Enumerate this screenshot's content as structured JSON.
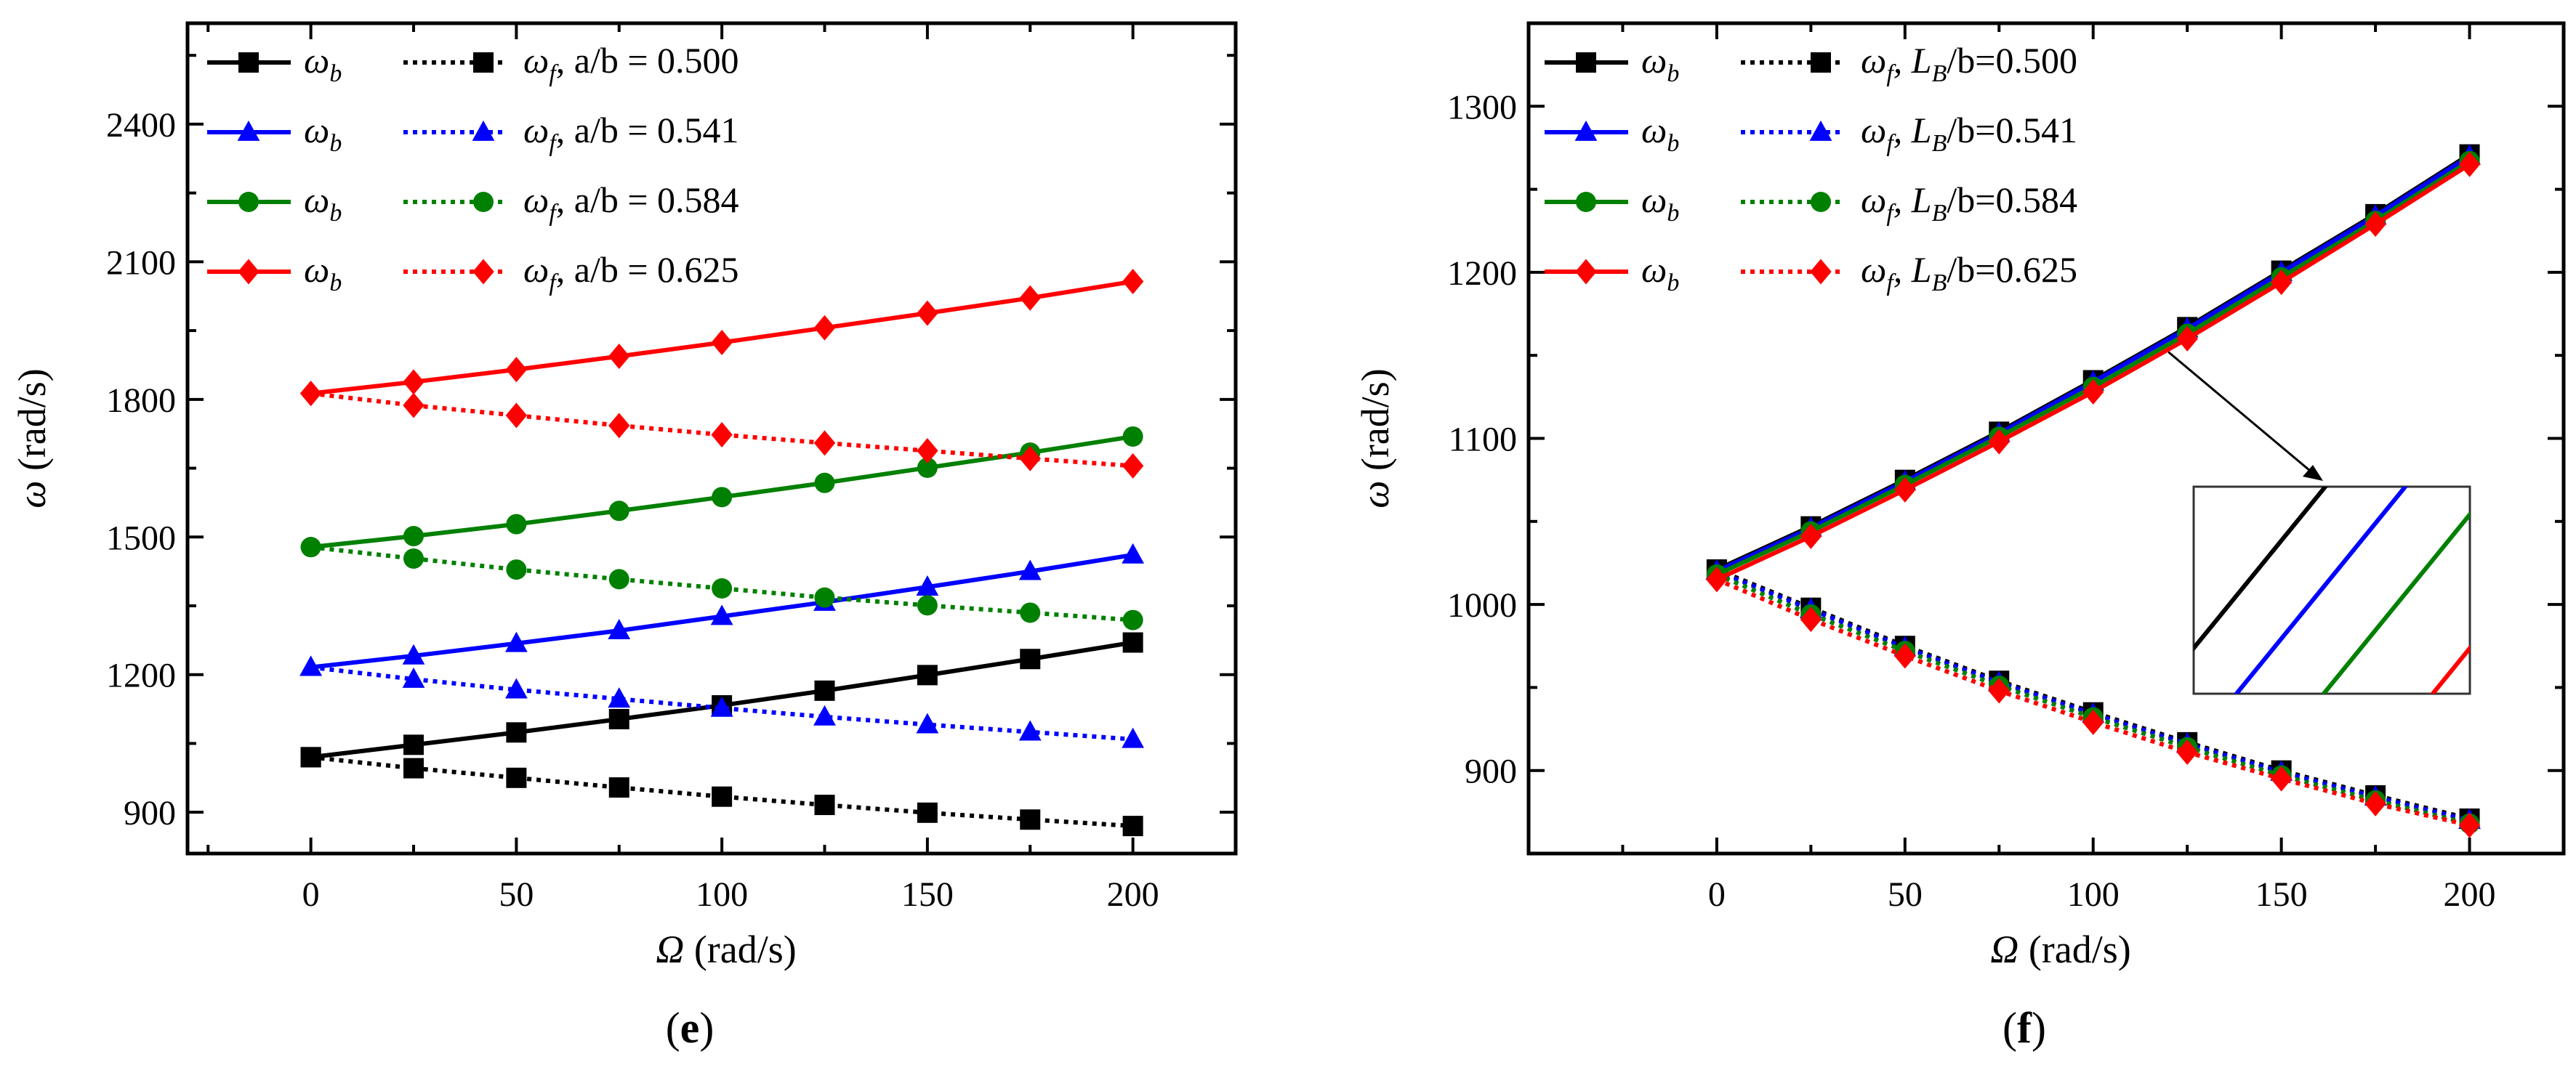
{
  "chart_data": [
    {
      "type": "line",
      "panel_label_open": "(",
      "panel_label": "e",
      "panel_label_close": ")",
      "xlabel": "Ω",
      "xlabel_unit": "(rad/s)",
      "ylabel": "ω",
      "ylabel_unit": "(rad/s)",
      "xlim": [
        -30,
        225
      ],
      "ylim": [
        810,
        2620
      ],
      "xticks": [
        0,
        50,
        100,
        150,
        200
      ],
      "xtick_labels": [
        "0",
        "50",
        "100",
        "150",
        "200"
      ],
      "yticks": [
        900,
        1200,
        1500,
        1800,
        2100,
        2400
      ],
      "ytick_labels": [
        "900",
        "1200",
        "1500",
        "1800",
        "2100",
        "2400"
      ],
      "x": [
        0,
        25,
        50,
        75,
        100,
        125,
        150,
        175,
        200
      ],
      "groups": [
        {
          "color": "#000000",
          "marker": "square",
          "backward_symbol": "ω",
          "backward_sub": "b",
          "forward_symbol": "ω",
          "forward_sub": "f",
          "ratio_label": ", a/b = 0.500",
          "backward": [
            1020,
            1047,
            1074,
            1103,
            1133,
            1165,
            1199,
            1234,
            1270
          ],
          "forward": [
            1020,
            996,
            975,
            954,
            934,
            916,
            899,
            884,
            870
          ]
        },
        {
          "color": "#0000ff",
          "marker": "triangle",
          "backward_symbol": "ω",
          "backward_sub": "b",
          "forward_symbol": "ω",
          "forward_sub": "f",
          "ratio_label": ", a/b = 0.541",
          "backward": [
            1216,
            1241,
            1268,
            1296,
            1327,
            1358,
            1391,
            1425,
            1461
          ],
          "forward": [
            1216,
            1190,
            1167,
            1147,
            1127,
            1108,
            1091,
            1075,
            1059
          ]
        },
        {
          "color": "#008000",
          "marker": "circle",
          "backward_symbol": "ω",
          "backward_sub": "b",
          "forward_symbol": "ω",
          "forward_sub": "f",
          "ratio_label": ", a/b = 0.584",
          "backward": [
            1478,
            1502,
            1528,
            1557,
            1587,
            1618,
            1651,
            1684,
            1719
          ],
          "forward": [
            1478,
            1453,
            1429,
            1408,
            1388,
            1368,
            1351,
            1335,
            1319
          ]
        },
        {
          "color": "#ff0000",
          "marker": "diamond",
          "backward_symbol": "ω",
          "backward_sub": "b",
          "forward_symbol": "ω",
          "forward_sub": "f",
          "ratio_label": ", a/b = 0.625",
          "backward": [
            1813,
            1838,
            1865,
            1894,
            1924,
            1956,
            1988,
            2021,
            2057
          ],
          "forward": [
            1813,
            1787,
            1765,
            1743,
            1723,
            1705,
            1688,
            1671,
            1655
          ]
        }
      ]
    },
    {
      "type": "line",
      "panel_label_open": "(",
      "panel_label": "f",
      "panel_label_close": ")",
      "xlabel": "Ω",
      "xlabel_unit": "(rad/s)",
      "ylabel": "ω",
      "ylabel_unit": "(rad/s)",
      "xlim": [
        -50,
        225
      ],
      "ylim": [
        850,
        1350
      ],
      "xticks": [
        0,
        50,
        100,
        150,
        200
      ],
      "xtick_labels": [
        "0",
        "50",
        "100",
        "150",
        "200"
      ],
      "yticks": [
        900,
        1000,
        1100,
        1200,
        1300
      ],
      "ytick_labels": [
        "900",
        "1000",
        "1100",
        "1200",
        "1300"
      ],
      "x": [
        0,
        25,
        50,
        75,
        100,
        125,
        150,
        175,
        200
      ],
      "inset": "zoomed view of backward-whirl lines near Ω ≈ 120 rad/s",
      "groups": [
        {
          "color": "#000000",
          "marker": "square",
          "backward_symbol": "ω",
          "backward_sub": "b",
          "forward_symbol": "ω",
          "forward_sub": "f",
          "ratio_label": ", L",
          "ratio_sub": "B",
          "ratio_tail": "/b=0.500",
          "backward": [
            1021,
            1047,
            1075,
            1104,
            1135,
            1167,
            1201,
            1235,
            1271
          ],
          "forward": [
            1021,
            998,
            975,
            954,
            935,
            917,
            900,
            885,
            871
          ]
        },
        {
          "color": "#0000ff",
          "marker": "triangle",
          "backward_symbol": "ω",
          "backward_sub": "b",
          "forward_symbol": "ω",
          "forward_sub": "f",
          "ratio_label": ", L",
          "ratio_sub": "B",
          "ratio_tail": "/b=0.541",
          "backward": [
            1020,
            1046,
            1074,
            1103,
            1134,
            1166,
            1200,
            1234,
            1270
          ],
          "forward": [
            1020,
            997,
            974,
            953,
            934,
            916,
            899,
            884,
            870
          ]
        },
        {
          "color": "#008000",
          "marker": "circle",
          "backward_symbol": "ω",
          "backward_sub": "b",
          "forward_symbol": "ω",
          "forward_sub": "f",
          "ratio_label": ", L",
          "ratio_sub": "B",
          "ratio_tail": "/b=0.584",
          "backward": [
            1018,
            1044,
            1072,
            1101,
            1131,
            1163,
            1197,
            1231,
            1267
          ],
          "forward": [
            1018,
            994,
            972,
            951,
            932,
            914,
            897,
            882,
            868
          ]
        },
        {
          "color": "#ff0000",
          "marker": "diamond",
          "backward_symbol": "ω",
          "backward_sub": "b",
          "forward_symbol": "ω",
          "forward_sub": "f",
          "ratio_label": ", L",
          "ratio_sub": "B",
          "ratio_tail": "/b=0.625",
          "backward": [
            1015,
            1041,
            1069,
            1098,
            1128,
            1160,
            1194,
            1229,
            1265
          ],
          "forward": [
            1015,
            991,
            969,
            948,
            929,
            911,
            895,
            880,
            867
          ]
        }
      ]
    }
  ]
}
